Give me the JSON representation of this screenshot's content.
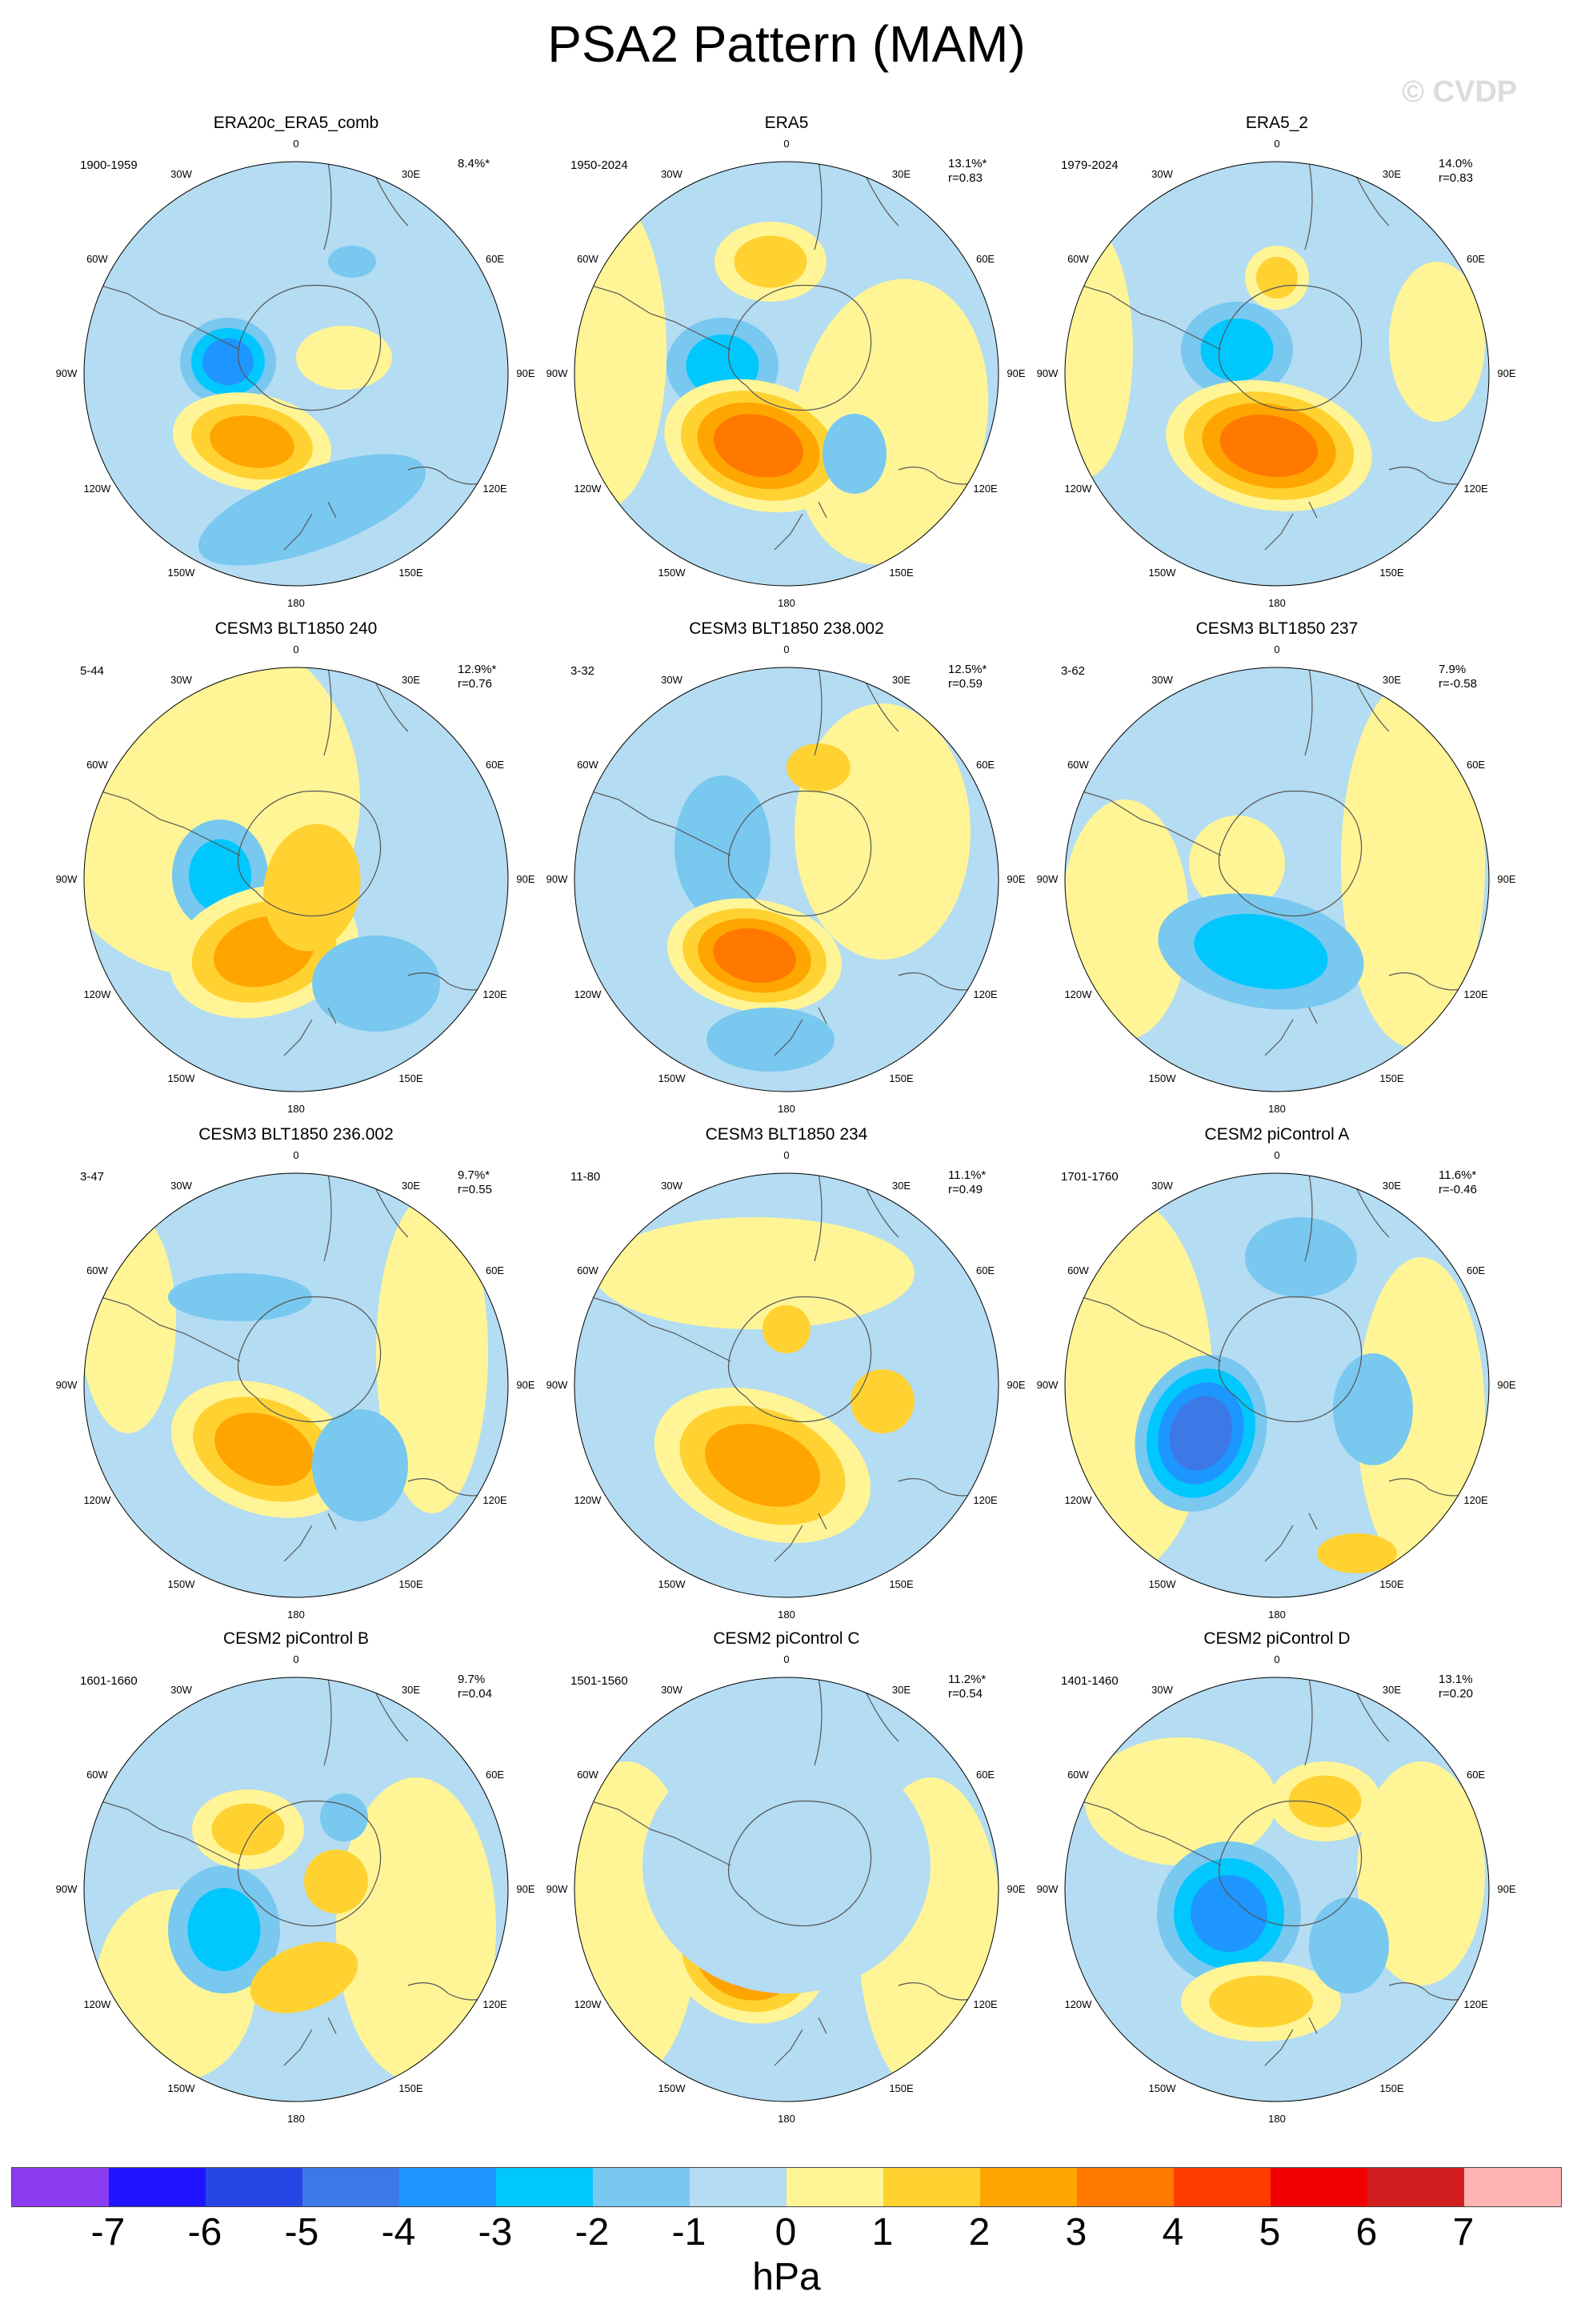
{
  "title": "PSA2 Pattern (MAM)",
  "watermark": "© CVDP",
  "lon_labels": [
    "0",
    "30E",
    "60E",
    "90E",
    "120E",
    "150E",
    "180",
    "150W",
    "120W",
    "90W",
    "60W",
    "30W"
  ],
  "colors": {
    "bg_ocean": "#b4dcf2",
    "levels": [
      "#8c3cf0",
      "#1e14ff",
      "#2846e6",
      "#3c78e6",
      "#1e96ff",
      "#00c8ff",
      "#78c8f0",
      "#b4dcf2",
      "#fff596",
      "#ffd232",
      "#ffa500",
      "#ff7800",
      "#ff3c00",
      "#f00000",
      "#d21e1e",
      "#ffb4b4"
    ]
  },
  "panels": [
    {
      "title": "ERA20c_ERA5_comb",
      "period": "1900-1959",
      "pct": "8.4%*",
      "r": ""
    },
    {
      "title": "ERA5",
      "period": "1950-2024",
      "pct": "13.1%*",
      "r": "r=0.83"
    },
    {
      "title": "ERA5_2",
      "period": "1979-2024",
      "pct": "14.0%",
      "r": "r=0.83"
    },
    {
      "title": "CESM3 BLT1850 240",
      "period": "5-44",
      "pct": "12.9%*",
      "r": "r=0.76"
    },
    {
      "title": "CESM3 BLT1850 238.002",
      "period": "3-32",
      "pct": "12.5%*",
      "r": "r=0.59"
    },
    {
      "title": "CESM3 BLT1850 237",
      "period": "3-62",
      "pct": "7.9%",
      "r": "r=-0.58"
    },
    {
      "title": "CESM3 BLT1850 236.002",
      "period": "3-47",
      "pct": "9.7%*",
      "r": "r=0.55"
    },
    {
      "title": "CESM3 BLT1850 234",
      "period": "11-80",
      "pct": "11.1%*",
      "r": "r=0.49"
    },
    {
      "title": "CESM2 piControl A",
      "period": "1701-1760",
      "pct": "11.6%*",
      "r": "r=-0.46"
    },
    {
      "title": "CESM2 piControl B",
      "period": "1601-1660",
      "pct": "9.7%",
      "r": "r=0.04"
    },
    {
      "title": "CESM2 piControl C",
      "period": "1501-1560",
      "pct": "11.2%*",
      "r": "r=0.54"
    },
    {
      "title": "CESM2 piControl D",
      "period": "1401-1460",
      "pct": "13.1%",
      "r": "r=0.20"
    }
  ],
  "colorbar": {
    "ticks": [
      "-7",
      "-6",
      "-5",
      "-4",
      "-3",
      "-2",
      "-1",
      "0",
      "1",
      "2",
      "3",
      "4",
      "5",
      "6",
      "7"
    ],
    "unit": "hPa"
  }
}
